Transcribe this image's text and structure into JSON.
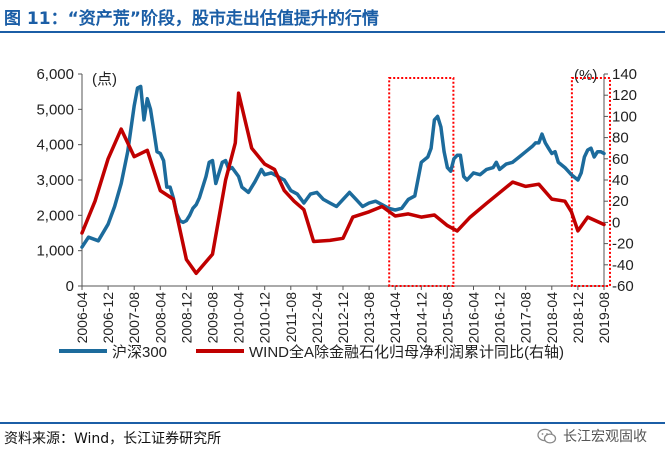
{
  "header": {
    "title": "图 11：“资产荒”阶段，股市走出估值提升的行情"
  },
  "footer": {
    "source": "资料来源：Wind，长江证券研究所",
    "watermark": "长江宏观固收"
  },
  "colors": {
    "accent": "#1b5ea6",
    "series1": "#1c6b9c",
    "series2": "#c00000",
    "highlight": "#ff0000"
  },
  "chart_data": {
    "type": "line",
    "left_unit": "(点)",
    "right_unit": "(%)",
    "y_left": {
      "min": 0,
      "max": 6000,
      "ticks": [
        "0",
        "1,000",
        "2,000",
        "3,000",
        "4,000",
        "5,000",
        "6,000"
      ]
    },
    "y_right": {
      "min": -60,
      "max": 140,
      "ticks": [
        "-60",
        "-40",
        "-20",
        "0",
        "20",
        "40",
        "60",
        "80",
        "100",
        "120",
        "140"
      ]
    },
    "x_ticks": [
      "2006-04",
      "2006-12",
      "2007-08",
      "2008-04",
      "2008-12",
      "2009-08",
      "2010-04",
      "2010-12",
      "2011-08",
      "2012-04",
      "2012-12",
      "2013-08",
      "2014-04",
      "2014-12",
      "2015-08",
      "2016-04",
      "2016-12",
      "2017-08",
      "2018-04",
      "2018-12",
      "2019-08"
    ],
    "highlight_ranges": [
      [
        "2014-04",
        "2015-08"
      ],
      [
        "2018-12",
        "2019-08"
      ]
    ],
    "series": [
      {
        "name": "沪深300",
        "axis": "left",
        "points": [
          [
            "2006-04",
            1100
          ],
          [
            "2006-06",
            1380
          ],
          [
            "2006-09",
            1280
          ],
          [
            "2006-12",
            1750
          ],
          [
            "2007-02",
            2250
          ],
          [
            "2007-04",
            2900
          ],
          [
            "2007-06",
            3800
          ],
          [
            "2007-08",
            5100
          ],
          [
            "2007-09",
            5600
          ],
          [
            "2007-10",
            5650
          ],
          [
            "2007-11",
            4700
          ],
          [
            "2007-12",
            5300
          ],
          [
            "2008-01",
            5000
          ],
          [
            "2008-02",
            4400
          ],
          [
            "2008-03",
            3800
          ],
          [
            "2008-04",
            3750
          ],
          [
            "2008-05",
            3550
          ],
          [
            "2008-06",
            2800
          ],
          [
            "2008-07",
            2800
          ],
          [
            "2008-08",
            2500
          ],
          [
            "2008-09",
            2050
          ],
          [
            "2008-10",
            1850
          ],
          [
            "2008-11",
            1800
          ],
          [
            "2008-12",
            1850
          ],
          [
            "2009-01",
            2000
          ],
          [
            "2009-02",
            2200
          ],
          [
            "2009-03",
            2300
          ],
          [
            "2009-04",
            2500
          ],
          [
            "2009-05",
            2800
          ],
          [
            "2009-06",
            3100
          ],
          [
            "2009-07",
            3500
          ],
          [
            "2009-08",
            3550
          ],
          [
            "2009-09",
            2900
          ],
          [
            "2009-10",
            3200
          ],
          [
            "2009-11",
            3500
          ],
          [
            "2009-12",
            3550
          ],
          [
            "2010-01",
            3300
          ],
          [
            "2010-02",
            3350
          ],
          [
            "2010-04",
            3100
          ],
          [
            "2010-05",
            2800
          ],
          [
            "2010-07",
            2650
          ],
          [
            "2010-09",
            2950
          ],
          [
            "2010-11",
            3300
          ],
          [
            "2010-12",
            3150
          ],
          [
            "2011-02",
            3200
          ],
          [
            "2011-04",
            3100
          ],
          [
            "2011-06",
            3000
          ],
          [
            "2011-08",
            2700
          ],
          [
            "2011-10",
            2600
          ],
          [
            "2011-12",
            2350
          ],
          [
            "2012-02",
            2600
          ],
          [
            "2012-04",
            2650
          ],
          [
            "2012-06",
            2450
          ],
          [
            "2012-08",
            2350
          ],
          [
            "2012-10",
            2250
          ],
          [
            "2012-12",
            2450
          ],
          [
            "2013-02",
            2650
          ],
          [
            "2013-04",
            2450
          ],
          [
            "2013-06",
            2250
          ],
          [
            "2013-08",
            2350
          ],
          [
            "2013-10",
            2400
          ],
          [
            "2013-12",
            2300
          ],
          [
            "2014-02",
            2200
          ],
          [
            "2014-04",
            2150
          ],
          [
            "2014-06",
            2200
          ],
          [
            "2014-08",
            2450
          ],
          [
            "2014-10",
            2550
          ],
          [
            "2014-12",
            3500
          ],
          [
            "2015-02",
            3650
          ],
          [
            "2015-03",
            3900
          ],
          [
            "2015-04",
            4700
          ],
          [
            "2015-05",
            4800
          ],
          [
            "2015-06",
            4500
          ],
          [
            "2015-07",
            3800
          ],
          [
            "2015-08",
            3350
          ],
          [
            "2015-09",
            3250
          ],
          [
            "2015-10",
            3600
          ],
          [
            "2015-11",
            3700
          ],
          [
            "2015-12",
            3700
          ],
          [
            "2016-01",
            3100
          ],
          [
            "2016-02",
            3000
          ],
          [
            "2016-04",
            3200
          ],
          [
            "2016-06",
            3150
          ],
          [
            "2016-08",
            3300
          ],
          [
            "2016-10",
            3350
          ],
          [
            "2016-11",
            3500
          ],
          [
            "2016-12",
            3300
          ],
          [
            "2017-02",
            3450
          ],
          [
            "2017-04",
            3500
          ],
          [
            "2017-06",
            3650
          ],
          [
            "2017-08",
            3800
          ],
          [
            "2017-10",
            3950
          ],
          [
            "2017-11",
            4050
          ],
          [
            "2017-12",
            4050
          ],
          [
            "2018-01",
            4300
          ],
          [
            "2018-02",
            4050
          ],
          [
            "2018-03",
            3900
          ],
          [
            "2018-04",
            3750
          ],
          [
            "2018-05",
            3800
          ],
          [
            "2018-06",
            3500
          ],
          [
            "2018-08",
            3350
          ],
          [
            "2018-10",
            3150
          ],
          [
            "2018-12",
            3000
          ],
          [
            "2019-01",
            3200
          ],
          [
            "2019-02",
            3650
          ],
          [
            "2019-03",
            3850
          ],
          [
            "2019-04",
            3900
          ],
          [
            "2019-05",
            3650
          ],
          [
            "2019-06",
            3800
          ],
          [
            "2019-07",
            3800
          ],
          [
            "2019-08",
            3750
          ]
        ]
      },
      {
        "name": "WIND全A除金融石化归母净利润累计同比(右轴)",
        "axis": "right",
        "points": [
          [
            "2006-04",
            -10
          ],
          [
            "2006-08",
            20
          ],
          [
            "2006-12",
            60
          ],
          [
            "2007-04",
            88
          ],
          [
            "2007-08",
            62
          ],
          [
            "2007-12",
            68
          ],
          [
            "2008-04",
            30
          ],
          [
            "2008-08",
            22
          ],
          [
            "2008-12",
            -35
          ],
          [
            "2009-03",
            -48
          ],
          [
            "2009-08",
            -30
          ],
          [
            "2009-12",
            40
          ],
          [
            "2010-03",
            75
          ],
          [
            "2010-04",
            122
          ],
          [
            "2010-08",
            70
          ],
          [
            "2010-12",
            55
          ],
          [
            "2011-03",
            50
          ],
          [
            "2011-06",
            30
          ],
          [
            "2011-09",
            20
          ],
          [
            "2011-12",
            12
          ],
          [
            "2012-03",
            -18
          ],
          [
            "2012-08",
            -17
          ],
          [
            "2012-12",
            -15
          ],
          [
            "2013-03",
            5
          ],
          [
            "2013-08",
            10
          ],
          [
            "2013-12",
            15
          ],
          [
            "2014-04",
            6
          ],
          [
            "2014-08",
            8
          ],
          [
            "2014-12",
            5
          ],
          [
            "2015-04",
            7
          ],
          [
            "2015-08",
            -3
          ],
          [
            "2015-11",
            -8
          ],
          [
            "2016-03",
            5
          ],
          [
            "2016-08",
            18
          ],
          [
            "2016-12",
            28
          ],
          [
            "2017-04",
            38
          ],
          [
            "2017-08",
            34
          ],
          [
            "2017-12",
            36
          ],
          [
            "2018-04",
            22
          ],
          [
            "2018-08",
            20
          ],
          [
            "2018-10",
            10
          ],
          [
            "2018-12",
            -8
          ],
          [
            "2019-03",
            5
          ],
          [
            "2019-08",
            -2
          ]
        ]
      }
    ]
  }
}
